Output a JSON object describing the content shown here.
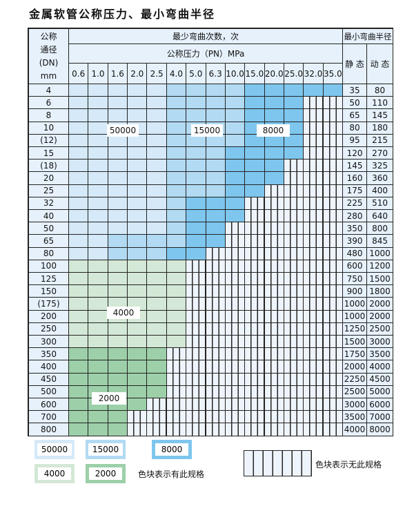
{
  "title": "金属软管公称压力、最小弯曲半径",
  "header": {
    "dn_label": [
      "公称",
      "通径",
      "(DN)",
      "mm"
    ],
    "cycles_label": "最少弯曲次数，次",
    "pressure_label": "公称压力（PN）MPa",
    "radius_label": "最小弯曲半径",
    "static_label": "静 态",
    "dynamic_label": "动 态",
    "pressures": [
      "0.6",
      "1.0",
      "1.6",
      "2.0",
      "2.5",
      "4.0",
      "5.0",
      "6.3",
      "10.0",
      "15.0",
      "20.0",
      "25.0",
      "32.0",
      "35.0"
    ]
  },
  "colors": {
    "50000": "#d5e9f8",
    "15000": "#b2daf3",
    "8000": "#7ec6ee",
    "4000": "#d3e8d6",
    "2000": "#9dd0a9"
  },
  "rows": [
    {
      "dn": "4",
      "static": "35",
      "dynamic": "80",
      "cycles": [
        50000,
        50000,
        50000,
        50000,
        50000,
        15000,
        15000,
        15000,
        15000,
        8000,
        8000,
        8000,
        8000,
        8000
      ]
    },
    {
      "dn": "6",
      "static": "50",
      "dynamic": "110",
      "cycles": [
        50000,
        50000,
        50000,
        50000,
        50000,
        15000,
        15000,
        15000,
        15000,
        8000,
        8000,
        8000,
        null,
        null
      ]
    },
    {
      "dn": "8",
      "static": "65",
      "dynamic": "145",
      "cycles": [
        50000,
        50000,
        50000,
        50000,
        50000,
        15000,
        15000,
        15000,
        15000,
        8000,
        8000,
        8000,
        null,
        null
      ]
    },
    {
      "dn": "10",
      "static": "80",
      "dynamic": "180",
      "cycles": [
        50000,
        50000,
        50000,
        50000,
        50000,
        15000,
        15000,
        15000,
        15000,
        8000,
        8000,
        8000,
        null,
        null
      ]
    },
    {
      "dn": "(12)",
      "static": "95",
      "dynamic": "215",
      "cycles": [
        50000,
        50000,
        50000,
        50000,
        50000,
        15000,
        15000,
        15000,
        15000,
        8000,
        8000,
        8000,
        null,
        null
      ]
    },
    {
      "dn": "15",
      "static": "120",
      "dynamic": "270",
      "cycles": [
        50000,
        50000,
        50000,
        50000,
        50000,
        15000,
        15000,
        15000,
        8000,
        8000,
        8000,
        8000,
        null,
        null
      ]
    },
    {
      "dn": "(18)",
      "static": "145",
      "dynamic": "325",
      "cycles": [
        50000,
        50000,
        50000,
        50000,
        50000,
        15000,
        15000,
        15000,
        8000,
        8000,
        8000,
        null,
        null,
        null
      ]
    },
    {
      "dn": "20",
      "static": "160",
      "dynamic": "360",
      "cycles": [
        50000,
        50000,
        50000,
        50000,
        50000,
        15000,
        15000,
        15000,
        8000,
        8000,
        8000,
        null,
        null,
        null
      ]
    },
    {
      "dn": "25",
      "static": "175",
      "dynamic": "400",
      "cycles": [
        50000,
        50000,
        50000,
        50000,
        50000,
        15000,
        15000,
        15000,
        8000,
        8000,
        null,
        null,
        null,
        null
      ]
    },
    {
      "dn": "32",
      "static": "225",
      "dynamic": "510",
      "cycles": [
        50000,
        50000,
        50000,
        50000,
        50000,
        15000,
        8000,
        8000,
        8000,
        null,
        null,
        null,
        null,
        null
      ]
    },
    {
      "dn": "40",
      "static": "280",
      "dynamic": "640",
      "cycles": [
        50000,
        50000,
        50000,
        50000,
        50000,
        15000,
        8000,
        8000,
        8000,
        null,
        null,
        null,
        null,
        null
      ]
    },
    {
      "dn": "50",
      "static": "350",
      "dynamic": "800",
      "cycles": [
        50000,
        50000,
        50000,
        50000,
        50000,
        15000,
        8000,
        8000,
        null,
        null,
        null,
        null,
        null,
        null
      ]
    },
    {
      "dn": "65",
      "static": "390",
      "dynamic": "845",
      "cycles": [
        50000,
        50000,
        15000,
        15000,
        15000,
        15000,
        8000,
        8000,
        null,
        null,
        null,
        null,
        null,
        null
      ]
    },
    {
      "dn": "80",
      "static": "480",
      "dynamic": "1000",
      "cycles": [
        50000,
        50000,
        15000,
        15000,
        15000,
        8000,
        8000,
        null,
        null,
        null,
        null,
        null,
        null,
        null
      ]
    },
    {
      "dn": "100",
      "static": "600",
      "dynamic": "1200",
      "cycles": [
        4000,
        4000,
        4000,
        4000,
        4000,
        4000,
        null,
        null,
        null,
        null,
        null,
        null,
        null,
        null
      ]
    },
    {
      "dn": "125",
      "static": "750",
      "dynamic": "1500",
      "cycles": [
        4000,
        4000,
        4000,
        4000,
        4000,
        4000,
        null,
        null,
        null,
        null,
        null,
        null,
        null,
        null
      ]
    },
    {
      "dn": "150",
      "static": "900",
      "dynamic": "1800",
      "cycles": [
        4000,
        4000,
        4000,
        4000,
        4000,
        4000,
        null,
        null,
        null,
        null,
        null,
        null,
        null,
        null
      ]
    },
    {
      "dn": "(175)",
      "static": "1000",
      "dynamic": "2000",
      "cycles": [
        4000,
        4000,
        4000,
        4000,
        4000,
        4000,
        null,
        null,
        null,
        null,
        null,
        null,
        null,
        null
      ]
    },
    {
      "dn": "200",
      "static": "1000",
      "dynamic": "2000",
      "cycles": [
        4000,
        4000,
        4000,
        4000,
        4000,
        4000,
        null,
        null,
        null,
        null,
        null,
        null,
        null,
        null
      ]
    },
    {
      "dn": "250",
      "static": "1250",
      "dynamic": "2500",
      "cycles": [
        4000,
        4000,
        4000,
        4000,
        4000,
        4000,
        null,
        null,
        null,
        null,
        null,
        null,
        null,
        null
      ]
    },
    {
      "dn": "300",
      "static": "1500",
      "dynamic": "3000",
      "cycles": [
        4000,
        4000,
        4000,
        4000,
        4000,
        4000,
        null,
        null,
        null,
        null,
        null,
        null,
        null,
        null
      ]
    },
    {
      "dn": "350",
      "static": "1750",
      "dynamic": "3500",
      "cycles": [
        2000,
        2000,
        2000,
        2000,
        2000,
        null,
        null,
        null,
        null,
        null,
        null,
        null,
        null,
        null
      ]
    },
    {
      "dn": "400",
      "static": "2000",
      "dynamic": "4000",
      "cycles": [
        2000,
        2000,
        2000,
        2000,
        2000,
        null,
        null,
        null,
        null,
        null,
        null,
        null,
        null,
        null
      ]
    },
    {
      "dn": "450",
      "static": "2250",
      "dynamic": "4500",
      "cycles": [
        2000,
        2000,
        2000,
        2000,
        2000,
        null,
        null,
        null,
        null,
        null,
        null,
        null,
        null,
        null
      ]
    },
    {
      "dn": "500",
      "static": "2500",
      "dynamic": "5000",
      "cycles": [
        2000,
        2000,
        2000,
        2000,
        2000,
        null,
        null,
        null,
        null,
        null,
        null,
        null,
        null,
        null
      ]
    },
    {
      "dn": "600",
      "static": "3000",
      "dynamic": "6000",
      "cycles": [
        2000,
        2000,
        2000,
        2000,
        null,
        null,
        null,
        null,
        null,
        null,
        null,
        null,
        null,
        null
      ]
    },
    {
      "dn": "700",
      "static": "3500",
      "dynamic": "7000",
      "cycles": [
        2000,
        2000,
        2000,
        null,
        null,
        null,
        null,
        null,
        null,
        null,
        null,
        null,
        null,
        null
      ]
    },
    {
      "dn": "800",
      "static": "4000",
      "dynamic": "8000",
      "cycles": [
        2000,
        2000,
        2000,
        null,
        null,
        null,
        null,
        null,
        null,
        null,
        null,
        null,
        null,
        null
      ]
    }
  ],
  "region_labels": [
    "50000",
    "15000",
    "8000",
    "4000",
    "2000"
  ],
  "legend": {
    "items": [
      "50000",
      "15000",
      "8000",
      "4000",
      "2000"
    ],
    "has_spec_text": "色块表示有此规格",
    "no_spec_text": "色块表示无此规格"
  }
}
